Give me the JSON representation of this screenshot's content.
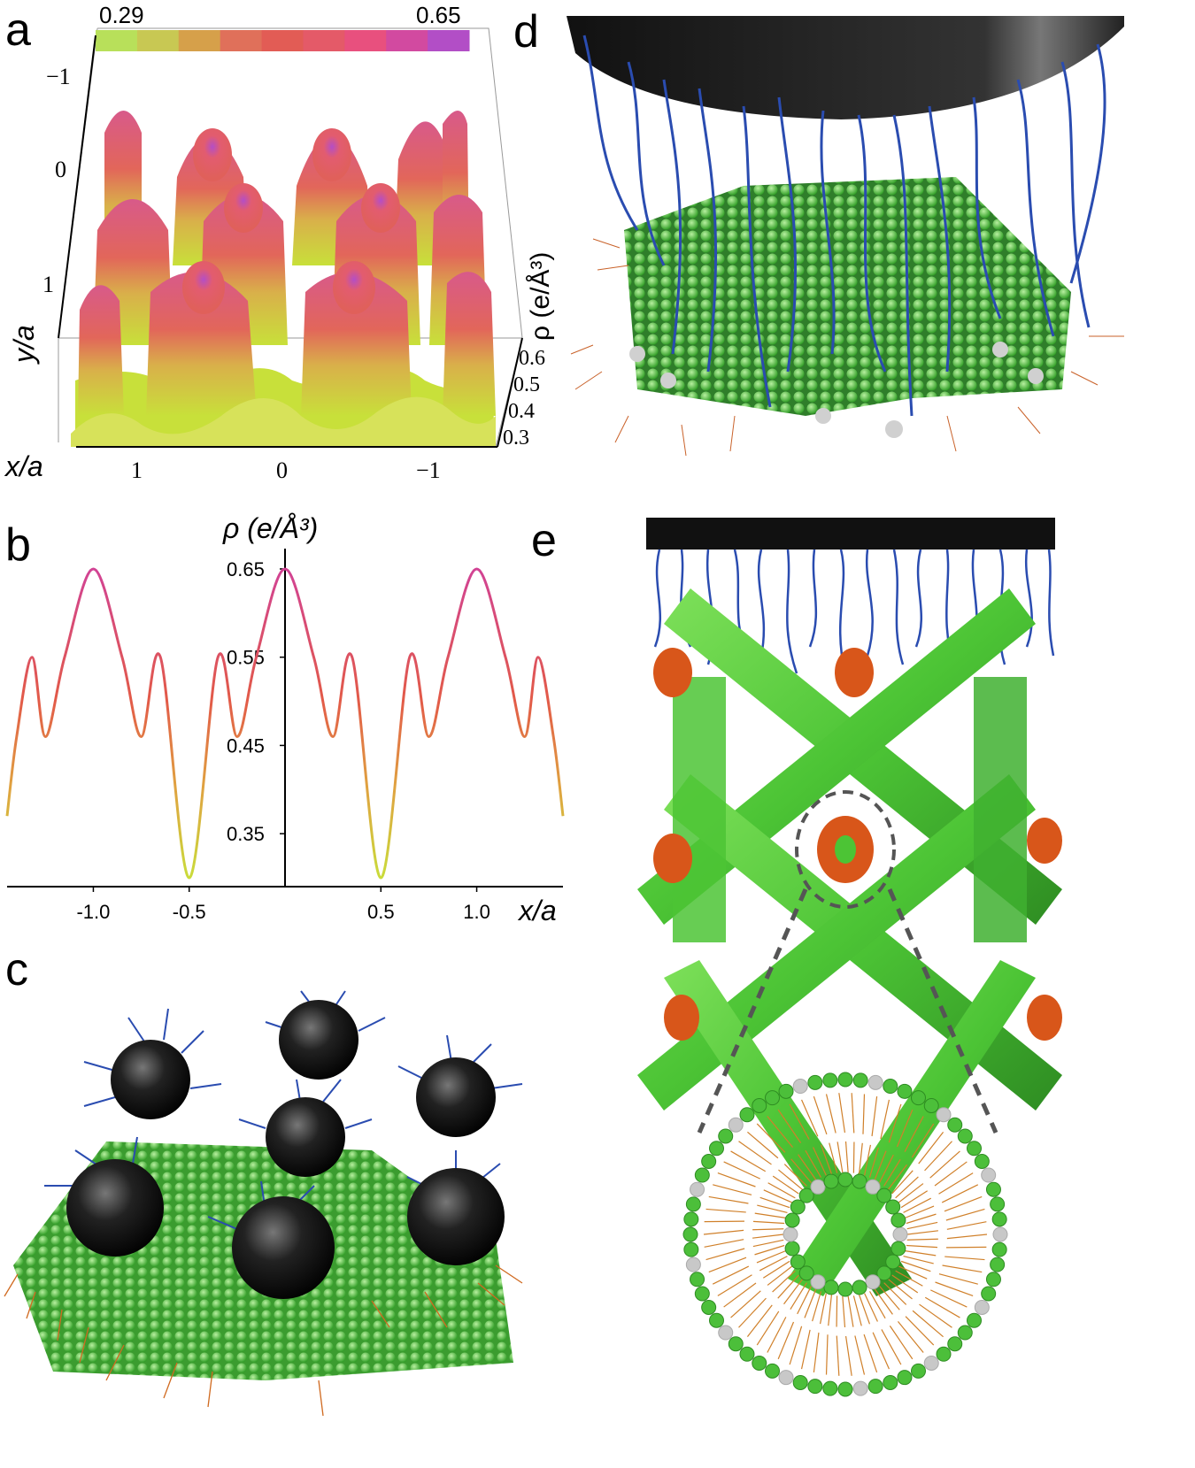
{
  "panels": {
    "a": {
      "letter": "a",
      "colorbar": {
        "min_label": "0.29",
        "max_label": "0.65",
        "colors": [
          "#b8e05a",
          "#c8c853",
          "#d6a04a",
          "#e0705a",
          "#e25c55",
          "#e45a68",
          "#e8507e",
          "#d24aa0",
          "#b24ec6"
        ]
      },
      "y_ticks": [
        "−1",
        "0",
        "1"
      ],
      "y_label": "y/a",
      "x_ticks": [
        "1",
        "0",
        "−1"
      ],
      "x_label": "x/a",
      "z_ticks": [
        "0.6",
        "0.5",
        "0.4",
        "0.3"
      ],
      "z_label": "ρ (e/Å³)"
    },
    "b": {
      "letter": "b",
      "y_label": "ρ (e/Å³)",
      "x_label": "x/a"
    },
    "c": {
      "letter": "c"
    },
    "d": {
      "letter": "d"
    },
    "e": {
      "letter": "e"
    }
  },
  "chart_data": {
    "type": "line",
    "title": "",
    "xlabel": "x/a",
    "ylabel": "ρ (e/Å³)",
    "xlim": [
      -1.45,
      1.45
    ],
    "ylim": [
      0.29,
      0.665
    ],
    "x_ticks": [
      "-1.0",
      "-0.5",
      "0.5",
      "1.0"
    ],
    "x_tick_values": [
      -1.0,
      -0.5,
      0.5,
      1.0
    ],
    "y_ticks": [
      "0.35",
      "0.45",
      "0.55",
      "0.65"
    ],
    "y_tick_values": [
      0.35,
      0.45,
      0.55,
      0.65
    ],
    "grid": false,
    "color_scale": [
      "#c8e03a",
      "#e0a040",
      "#e25a48",
      "#cf3fa0"
    ],
    "x": [
      -1.45,
      -1.4,
      -1.32,
      -1.25,
      -1.15,
      -1.0,
      -0.85,
      -0.75,
      -0.65,
      -0.5,
      -0.35,
      -0.25,
      -0.15,
      0.0,
      0.15,
      0.25,
      0.35,
      0.5,
      0.65,
      0.75,
      0.85,
      1.0,
      1.15,
      1.25,
      1.32,
      1.4,
      1.45
    ],
    "values": [
      0.37,
      0.46,
      0.55,
      0.46,
      0.55,
      0.65,
      0.55,
      0.46,
      0.55,
      0.3,
      0.55,
      0.46,
      0.55,
      0.65,
      0.55,
      0.46,
      0.55,
      0.3,
      0.55,
      0.46,
      0.55,
      0.65,
      0.55,
      0.46,
      0.55,
      0.46,
      0.37
    ]
  }
}
